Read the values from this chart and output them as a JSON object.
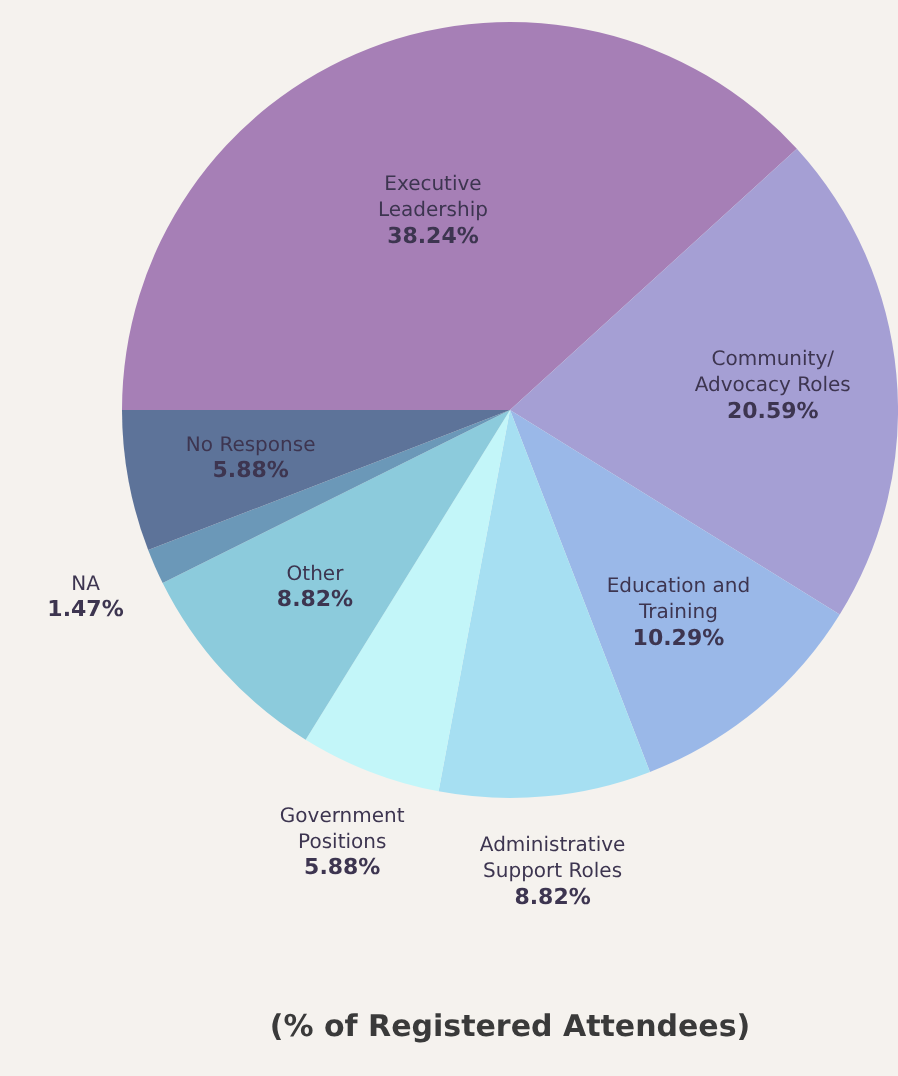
{
  "chart_data": {
    "type": "pie",
    "title": "(% of Registered Attendees)",
    "categories": [
      "Executive Leadership",
      "Community/ Advocacy Roles",
      "Education and Training",
      "Administrative Support Roles",
      "Government Positions",
      "Other",
      "NA",
      "No Response"
    ],
    "values": [
      38.24,
      20.59,
      10.29,
      8.82,
      5.88,
      8.82,
      1.47,
      5.88
    ],
    "value_labels": [
      "38.24%",
      "20.59%",
      "10.29%",
      "8.82%",
      "5.88%",
      "8.82%",
      "1.47%",
      "5.88%"
    ],
    "colors": [
      "#a67fb6",
      "#a59fd4",
      "#9ab8e8",
      "#a6dff2",
      "#c3f6f9",
      "#8ccbdc",
      "#6b98b8",
      "#5d7399"
    ],
    "legend": false
  }
}
